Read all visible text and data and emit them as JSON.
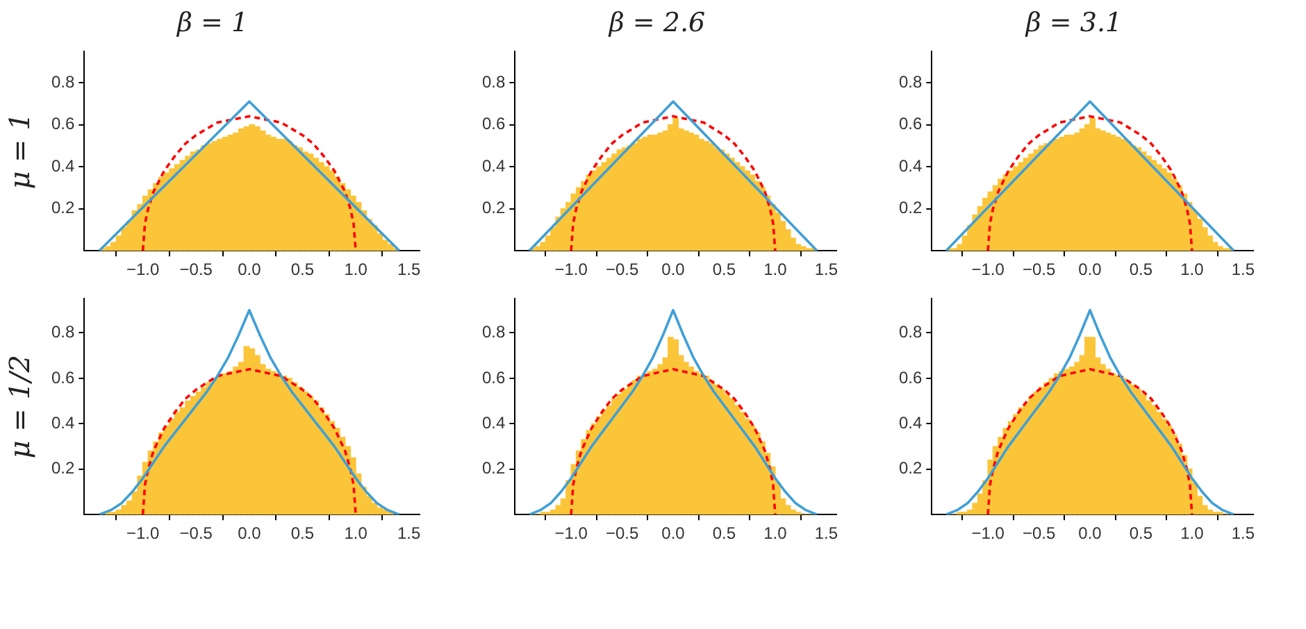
{
  "chart_data": [
    {
      "type": "histogram",
      "title": "β = 1",
      "ylabel": "μ = 1",
      "color": "#fbc53a",
      "bins": [
        -1.4,
        -1.35,
        -1.3,
        -1.25,
        -1.2,
        -1.15,
        -1.1,
        -1.05,
        -1.0,
        -0.95,
        -0.9,
        -0.85,
        -0.8,
        -0.75,
        -0.7,
        -0.65,
        -0.6,
        -0.55,
        -0.5,
        -0.45,
        -0.4,
        -0.35,
        -0.3,
        -0.25,
        -0.2,
        -0.15,
        -0.1,
        -0.05,
        0,
        0.05,
        0.1,
        0.15,
        0.2,
        0.25,
        0.3,
        0.35,
        0.4,
        0.45,
        0.5,
        0.55,
        0.6,
        0.65,
        0.7,
        0.75,
        0.8,
        0.85,
        0.9,
        0.95,
        1.0,
        1.05,
        1.1,
        1.15,
        1.2,
        1.25,
        1.3,
        1.35,
        1.4
      ],
      "values": [
        0.01,
        0.02,
        0.04,
        0.07,
        0.11,
        0.14,
        0.19,
        0.22,
        0.26,
        0.29,
        0.32,
        0.35,
        0.37,
        0.39,
        0.41,
        0.43,
        0.45,
        0.47,
        0.48,
        0.5,
        0.51,
        0.52,
        0.53,
        0.54,
        0.55,
        0.56,
        0.58,
        0.59,
        0.6,
        0.59,
        0.57,
        0.55,
        0.54,
        0.53,
        0.53,
        0.52,
        0.5,
        0.49,
        0.47,
        0.46,
        0.44,
        0.42,
        0.4,
        0.38,
        0.35,
        0.32,
        0.29,
        0.26,
        0.23,
        0.19,
        0.15,
        0.12,
        0.08,
        0.05,
        0.03,
        0.01
      ],
      "series": [
        {
          "type": "line",
          "color": "#3f9fd6",
          "x": [
            -1.41,
            0,
            1.41
          ],
          "values": [
            0,
            0.71,
            0
          ]
        },
        {
          "type": "line",
          "color": "#ff0000",
          "line_style": "dashed",
          "x": [
            -1,
            -0.98,
            -0.95,
            -0.9,
            -0.8,
            -0.7,
            -0.6,
            -0.5,
            -0.4,
            -0.3,
            -0.2,
            -0.1,
            0,
            0.1,
            0.2,
            0.3,
            0.4,
            0.5,
            0.6,
            0.7,
            0.8,
            0.9,
            0.95,
            0.98,
            1
          ],
          "values": [
            0,
            0.13,
            0.2,
            0.28,
            0.38,
            0.45,
            0.51,
            0.55,
            0.58,
            0.61,
            0.62,
            0.63,
            0.64,
            0.63,
            0.62,
            0.61,
            0.58,
            0.55,
            0.51,
            0.45,
            0.38,
            0.28,
            0.2,
            0.13,
            0
          ]
        }
      ],
      "xlim": [
        -1.55,
        1.6
      ],
      "xticks": [
        {
          "value": -1,
          "label": "−1.0"
        },
        {
          "value": -0.5,
          "label": "−0.5"
        },
        {
          "value": 0,
          "label": "0.0"
        },
        {
          "value": 0.5,
          "label": "0.5"
        },
        {
          "value": 1,
          "label": "1.0"
        },
        {
          "value": 1.5,
          "label": "1.5"
        }
      ],
      "ylim": [
        0,
        0.95
      ],
      "yticks": [
        0.2,
        0.4,
        0.6,
        0.8
      ],
      "grid": false,
      "legend": false
    },
    {
      "type": "histogram",
      "title": "β = 2.6",
      "color": "#fbc53a",
      "bins": [
        -1.4,
        -1.35,
        -1.3,
        -1.25,
        -1.2,
        -1.15,
        -1.1,
        -1.05,
        -1.0,
        -0.95,
        -0.9,
        -0.85,
        -0.8,
        -0.75,
        -0.7,
        -0.65,
        -0.6,
        -0.55,
        -0.5,
        -0.45,
        -0.4,
        -0.35,
        -0.3,
        -0.25,
        -0.2,
        -0.15,
        -0.1,
        -0.05,
        0,
        0.05,
        0.1,
        0.15,
        0.2,
        0.25,
        0.3,
        0.35,
        0.4,
        0.45,
        0.5,
        0.55,
        0.6,
        0.65,
        0.7,
        0.75,
        0.8,
        0.85,
        0.9,
        0.95,
        1.0,
        1.05,
        1.1,
        1.15,
        1.2,
        1.25,
        1.3,
        1.35,
        1.4
      ],
      "values": [
        0.01,
        0.02,
        0.04,
        0.07,
        0.11,
        0.16,
        0.2,
        0.23,
        0.27,
        0.3,
        0.33,
        0.36,
        0.38,
        0.4,
        0.42,
        0.44,
        0.46,
        0.48,
        0.49,
        0.5,
        0.51,
        0.53,
        0.54,
        0.55,
        0.55,
        0.56,
        0.57,
        0.6,
        0.63,
        0.58,
        0.57,
        0.56,
        0.55,
        0.53,
        0.52,
        0.51,
        0.49,
        0.48,
        0.46,
        0.44,
        0.42,
        0.4,
        0.38,
        0.36,
        0.33,
        0.3,
        0.26,
        0.22,
        0.18,
        0.14,
        0.1,
        0.06,
        0.03,
        0.02,
        0.01,
        0.01
      ],
      "series": [
        {
          "type": "line",
          "color": "#3f9fd6",
          "x": [
            -1.41,
            0,
            1.41
          ],
          "values": [
            0,
            0.71,
            0
          ]
        },
        {
          "type": "line",
          "color": "#ff0000",
          "line_style": "dashed",
          "x": [
            -1,
            -0.98,
            -0.95,
            -0.9,
            -0.8,
            -0.7,
            -0.6,
            -0.5,
            -0.4,
            -0.3,
            -0.2,
            -0.1,
            0,
            0.1,
            0.2,
            0.3,
            0.4,
            0.5,
            0.6,
            0.7,
            0.8,
            0.9,
            0.95,
            0.98,
            1
          ],
          "values": [
            0,
            0.13,
            0.2,
            0.28,
            0.38,
            0.45,
            0.51,
            0.55,
            0.58,
            0.61,
            0.62,
            0.63,
            0.64,
            0.63,
            0.62,
            0.61,
            0.58,
            0.55,
            0.51,
            0.45,
            0.38,
            0.28,
            0.2,
            0.13,
            0
          ]
        }
      ],
      "xlim": [
        -1.55,
        1.6
      ],
      "xticks": [
        {
          "value": -1,
          "label": "−1.0"
        },
        {
          "value": -0.5,
          "label": "−0.5"
        },
        {
          "value": 0,
          "label": "0.0"
        },
        {
          "value": 0.5,
          "label": "0.5"
        },
        {
          "value": 1,
          "label": "1.0"
        },
        {
          "value": 1.5,
          "label": "1.5"
        }
      ],
      "ylim": [
        0,
        0.95
      ],
      "yticks": [
        0.2,
        0.4,
        0.6,
        0.8
      ],
      "grid": false,
      "legend": false
    },
    {
      "type": "histogram",
      "title": "β = 3.1",
      "color": "#fbc53a",
      "bins": [
        -1.4,
        -1.35,
        -1.3,
        -1.25,
        -1.2,
        -1.15,
        -1.1,
        -1.05,
        -1.0,
        -0.95,
        -0.9,
        -0.85,
        -0.8,
        -0.75,
        -0.7,
        -0.65,
        -0.6,
        -0.55,
        -0.5,
        -0.45,
        -0.4,
        -0.35,
        -0.3,
        -0.25,
        -0.2,
        -0.15,
        -0.1,
        -0.05,
        0,
        0.05,
        0.1,
        0.15,
        0.2,
        0.25,
        0.3,
        0.35,
        0.4,
        0.45,
        0.5,
        0.55,
        0.6,
        0.65,
        0.7,
        0.75,
        0.8,
        0.85,
        0.9,
        0.95,
        1.0,
        1.05,
        1.1,
        1.15,
        1.2,
        1.25,
        1.3,
        1.35,
        1.4
      ],
      "values": [
        0.01,
        0.01,
        0.03,
        0.07,
        0.12,
        0.17,
        0.21,
        0.25,
        0.28,
        0.31,
        0.34,
        0.36,
        0.38,
        0.4,
        0.42,
        0.44,
        0.46,
        0.48,
        0.5,
        0.51,
        0.52,
        0.53,
        0.54,
        0.55,
        0.55,
        0.56,
        0.58,
        0.6,
        0.63,
        0.58,
        0.57,
        0.56,
        0.55,
        0.54,
        0.53,
        0.52,
        0.5,
        0.49,
        0.47,
        0.45,
        0.43,
        0.41,
        0.39,
        0.37,
        0.34,
        0.31,
        0.27,
        0.23,
        0.19,
        0.15,
        0.11,
        0.07,
        0.04,
        0.02,
        0.01,
        0.01
      ],
      "series": [
        {
          "type": "line",
          "color": "#3f9fd6",
          "x": [
            -1.41,
            0,
            1.41
          ],
          "values": [
            0,
            0.71,
            0
          ]
        },
        {
          "type": "line",
          "color": "#ff0000",
          "line_style": "dashed",
          "x": [
            -1,
            -0.98,
            -0.95,
            -0.9,
            -0.8,
            -0.7,
            -0.6,
            -0.5,
            -0.4,
            -0.3,
            -0.2,
            -0.1,
            0,
            0.1,
            0.2,
            0.3,
            0.4,
            0.5,
            0.6,
            0.7,
            0.8,
            0.9,
            0.95,
            0.98,
            1
          ],
          "values": [
            0,
            0.13,
            0.2,
            0.28,
            0.38,
            0.45,
            0.51,
            0.55,
            0.58,
            0.61,
            0.62,
            0.63,
            0.64,
            0.63,
            0.62,
            0.61,
            0.58,
            0.55,
            0.51,
            0.45,
            0.38,
            0.28,
            0.2,
            0.13,
            0
          ]
        }
      ],
      "xlim": [
        -1.55,
        1.6
      ],
      "xticks": [
        {
          "value": -1,
          "label": "−1.0"
        },
        {
          "value": -0.5,
          "label": "−0.5"
        },
        {
          "value": 0,
          "label": "0.0"
        },
        {
          "value": 0.5,
          "label": "0.5"
        },
        {
          "value": 1,
          "label": "1.0"
        },
        {
          "value": 1.5,
          "label": "1.5"
        }
      ],
      "ylim": [
        0,
        0.95
      ],
      "yticks": [
        0.2,
        0.4,
        0.6,
        0.8
      ],
      "grid": false,
      "legend": false
    },
    {
      "type": "histogram",
      "ylabel": "μ = 1/2",
      "color": "#fbc53a",
      "bins": [
        -1.4,
        -1.35,
        -1.3,
        -1.25,
        -1.2,
        -1.15,
        -1.1,
        -1.05,
        -1.0,
        -0.95,
        -0.9,
        -0.85,
        -0.8,
        -0.75,
        -0.7,
        -0.65,
        -0.6,
        -0.55,
        -0.5,
        -0.45,
        -0.4,
        -0.35,
        -0.3,
        -0.25,
        -0.2,
        -0.15,
        -0.1,
        -0.05,
        0,
        0.05,
        0.1,
        0.15,
        0.2,
        0.25,
        0.3,
        0.35,
        0.4,
        0.45,
        0.5,
        0.55,
        0.6,
        0.65,
        0.7,
        0.75,
        0.8,
        0.85,
        0.9,
        0.95,
        1.0,
        1.05,
        1.1,
        1.15,
        1.2,
        1.25,
        1.3,
        1.35,
        1.4
      ],
      "values": [
        0,
        0.01,
        0.01,
        0.02,
        0.04,
        0.06,
        0.1,
        0.17,
        0.23,
        0.28,
        0.32,
        0.36,
        0.39,
        0.42,
        0.45,
        0.47,
        0.5,
        0.52,
        0.54,
        0.56,
        0.58,
        0.6,
        0.61,
        0.62,
        0.63,
        0.65,
        0.67,
        0.74,
        0.73,
        0.7,
        0.66,
        0.64,
        0.63,
        0.62,
        0.61,
        0.6,
        0.58,
        0.56,
        0.54,
        0.52,
        0.5,
        0.47,
        0.44,
        0.41,
        0.38,
        0.34,
        0.3,
        0.25,
        0.18,
        0.12,
        0.08,
        0.05,
        0.03,
        0.02,
        0.01,
        0
      ],
      "series": [
        {
          "type": "line",
          "color": "#3f9fd6",
          "x": [
            -1.41,
            -1.3,
            -1.2,
            -1.1,
            -1,
            -0.9,
            -0.8,
            -0.7,
            -0.6,
            -0.5,
            -0.4,
            -0.3,
            -0.2,
            -0.1,
            0,
            0.1,
            0.2,
            0.3,
            0.4,
            0.5,
            0.6,
            0.7,
            0.8,
            0.9,
            1,
            1.1,
            1.2,
            1.3,
            1.41
          ],
          "values": [
            0,
            0.02,
            0.05,
            0.1,
            0.16,
            0.23,
            0.3,
            0.36,
            0.42,
            0.48,
            0.54,
            0.61,
            0.69,
            0.79,
            0.9,
            0.79,
            0.69,
            0.61,
            0.54,
            0.48,
            0.42,
            0.36,
            0.3,
            0.23,
            0.16,
            0.1,
            0.05,
            0.02,
            0
          ]
        },
        {
          "type": "line",
          "color": "#ff0000",
          "line_style": "dashed",
          "x": [
            -1,
            -0.98,
            -0.95,
            -0.9,
            -0.8,
            -0.7,
            -0.6,
            -0.5,
            -0.4,
            -0.3,
            -0.2,
            -0.1,
            0,
            0.1,
            0.2,
            0.3,
            0.4,
            0.5,
            0.6,
            0.7,
            0.8,
            0.9,
            0.95,
            0.98,
            1
          ],
          "values": [
            0,
            0.13,
            0.2,
            0.28,
            0.38,
            0.45,
            0.51,
            0.55,
            0.58,
            0.61,
            0.62,
            0.63,
            0.64,
            0.63,
            0.62,
            0.61,
            0.58,
            0.55,
            0.51,
            0.45,
            0.38,
            0.28,
            0.2,
            0.13,
            0
          ]
        }
      ],
      "xlim": [
        -1.55,
        1.6
      ],
      "xticks": [
        {
          "value": -1,
          "label": "−1.0"
        },
        {
          "value": -0.5,
          "label": "−0.5"
        },
        {
          "value": 0,
          "label": "0.0"
        },
        {
          "value": 0.5,
          "label": "0.5"
        },
        {
          "value": 1,
          "label": "1.0"
        },
        {
          "value": 1.5,
          "label": "1.5"
        }
      ],
      "ylim": [
        0,
        0.95
      ],
      "yticks": [
        0.2,
        0.4,
        0.6,
        0.8
      ],
      "grid": false,
      "legend": false
    },
    {
      "type": "histogram",
      "color": "#fbc53a",
      "bins": [
        -1.4,
        -1.35,
        -1.3,
        -1.25,
        -1.2,
        -1.15,
        -1.1,
        -1.05,
        -1.0,
        -0.95,
        -0.9,
        -0.85,
        -0.8,
        -0.75,
        -0.7,
        -0.65,
        -0.6,
        -0.55,
        -0.5,
        -0.45,
        -0.4,
        -0.35,
        -0.3,
        -0.25,
        -0.2,
        -0.15,
        -0.1,
        -0.05,
        0,
        0.05,
        0.1,
        0.15,
        0.2,
        0.25,
        0.3,
        0.35,
        0.4,
        0.45,
        0.5,
        0.55,
        0.6,
        0.65,
        0.7,
        0.75,
        0.8,
        0.85,
        0.9,
        0.95,
        1.0,
        1.05,
        1.1,
        1.15,
        1.2,
        1.25,
        1.3,
        1.35,
        1.4
      ],
      "values": [
        0,
        0,
        0.01,
        0.01,
        0.02,
        0.04,
        0.07,
        0.15,
        0.22,
        0.28,
        0.33,
        0.37,
        0.4,
        0.43,
        0.46,
        0.48,
        0.51,
        0.53,
        0.55,
        0.57,
        0.59,
        0.61,
        0.62,
        0.63,
        0.64,
        0.66,
        0.69,
        0.78,
        0.77,
        0.7,
        0.67,
        0.65,
        0.63,
        0.62,
        0.61,
        0.59,
        0.57,
        0.55,
        0.53,
        0.51,
        0.48,
        0.45,
        0.42,
        0.39,
        0.36,
        0.32,
        0.27,
        0.21,
        0.14,
        0.07,
        0.04,
        0.02,
        0.01,
        0,
        0,
        0
      ],
      "series": [
        {
          "type": "line",
          "color": "#3f9fd6",
          "x": [
            -1.41,
            -1.3,
            -1.2,
            -1.1,
            -1,
            -0.9,
            -0.8,
            -0.7,
            -0.6,
            -0.5,
            -0.4,
            -0.3,
            -0.2,
            -0.1,
            0,
            0.1,
            0.2,
            0.3,
            0.4,
            0.5,
            0.6,
            0.7,
            0.8,
            0.9,
            1,
            1.1,
            1.2,
            1.3,
            1.41
          ],
          "values": [
            0,
            0.02,
            0.05,
            0.1,
            0.16,
            0.23,
            0.3,
            0.36,
            0.42,
            0.48,
            0.54,
            0.61,
            0.69,
            0.79,
            0.9,
            0.79,
            0.69,
            0.61,
            0.54,
            0.48,
            0.42,
            0.36,
            0.3,
            0.23,
            0.16,
            0.1,
            0.05,
            0.02,
            0
          ]
        },
        {
          "type": "line",
          "color": "#ff0000",
          "line_style": "dashed",
          "x": [
            -1,
            -0.98,
            -0.95,
            -0.9,
            -0.8,
            -0.7,
            -0.6,
            -0.5,
            -0.4,
            -0.3,
            -0.2,
            -0.1,
            0,
            0.1,
            0.2,
            0.3,
            0.4,
            0.5,
            0.6,
            0.7,
            0.8,
            0.9,
            0.95,
            0.98,
            1
          ],
          "values": [
            0,
            0.13,
            0.2,
            0.28,
            0.38,
            0.45,
            0.51,
            0.55,
            0.58,
            0.61,
            0.62,
            0.63,
            0.64,
            0.63,
            0.62,
            0.61,
            0.58,
            0.55,
            0.51,
            0.45,
            0.38,
            0.28,
            0.2,
            0.13,
            0
          ]
        }
      ],
      "xlim": [
        -1.55,
        1.6
      ],
      "xticks": [
        {
          "value": -1,
          "label": "−1.0"
        },
        {
          "value": -0.5,
          "label": "−0.5"
        },
        {
          "value": 0,
          "label": "0.0"
        },
        {
          "value": 0.5,
          "label": "0.5"
        },
        {
          "value": 1,
          "label": "1.0"
        },
        {
          "value": 1.5,
          "label": "1.5"
        }
      ],
      "ylim": [
        0,
        0.95
      ],
      "yticks": [
        0.2,
        0.4,
        0.6,
        0.8
      ],
      "grid": false,
      "legend": false
    },
    {
      "type": "histogram",
      "color": "#fbc53a",
      "bins": [
        -1.4,
        -1.35,
        -1.3,
        -1.25,
        -1.2,
        -1.15,
        -1.1,
        -1.05,
        -1.0,
        -0.95,
        -0.9,
        -0.85,
        -0.8,
        -0.75,
        -0.7,
        -0.65,
        -0.6,
        -0.55,
        -0.5,
        -0.45,
        -0.4,
        -0.35,
        -0.3,
        -0.25,
        -0.2,
        -0.15,
        -0.1,
        -0.05,
        0,
        0.05,
        0.1,
        0.15,
        0.2,
        0.25,
        0.3,
        0.35,
        0.4,
        0.45,
        0.5,
        0.55,
        0.6,
        0.65,
        0.7,
        0.75,
        0.8,
        0.85,
        0.9,
        0.95,
        1.0,
        1.05,
        1.1,
        1.15,
        1.2,
        1.25,
        1.3,
        1.35,
        1.4
      ],
      "values": [
        0,
        0,
        0.01,
        0.01,
        0.02,
        0.05,
        0.09,
        0.15,
        0.24,
        0.3,
        0.34,
        0.38,
        0.41,
        0.44,
        0.47,
        0.49,
        0.52,
        0.54,
        0.56,
        0.58,
        0.6,
        0.62,
        0.63,
        0.64,
        0.65,
        0.67,
        0.7,
        0.78,
        0.78,
        0.69,
        0.66,
        0.64,
        0.62,
        0.61,
        0.6,
        0.58,
        0.57,
        0.55,
        0.53,
        0.5,
        0.48,
        0.45,
        0.42,
        0.39,
        0.35,
        0.31,
        0.26,
        0.2,
        0.14,
        0.08,
        0.04,
        0.02,
        0.01,
        0.01,
        0,
        0
      ],
      "series": [
        {
          "type": "line",
          "color": "#3f9fd6",
          "x": [
            -1.41,
            -1.3,
            -1.2,
            -1.1,
            -1,
            -0.9,
            -0.8,
            -0.7,
            -0.6,
            -0.5,
            -0.4,
            -0.3,
            -0.2,
            -0.1,
            0,
            0.1,
            0.2,
            0.3,
            0.4,
            0.5,
            0.6,
            0.7,
            0.8,
            0.9,
            1,
            1.1,
            1.2,
            1.3,
            1.41
          ],
          "values": [
            0,
            0.02,
            0.05,
            0.1,
            0.16,
            0.23,
            0.3,
            0.36,
            0.42,
            0.48,
            0.54,
            0.61,
            0.69,
            0.79,
            0.9,
            0.79,
            0.69,
            0.61,
            0.54,
            0.48,
            0.42,
            0.36,
            0.3,
            0.23,
            0.16,
            0.1,
            0.05,
            0.02,
            0
          ]
        },
        {
          "type": "line",
          "color": "#ff0000",
          "line_style": "dashed",
          "x": [
            -1,
            -0.98,
            -0.95,
            -0.9,
            -0.8,
            -0.7,
            -0.6,
            -0.5,
            -0.4,
            -0.3,
            -0.2,
            -0.1,
            0,
            0.1,
            0.2,
            0.3,
            0.4,
            0.5,
            0.6,
            0.7,
            0.8,
            0.9,
            0.95,
            0.98,
            1
          ],
          "values": [
            0,
            0.13,
            0.2,
            0.28,
            0.38,
            0.45,
            0.51,
            0.55,
            0.58,
            0.61,
            0.62,
            0.63,
            0.64,
            0.63,
            0.62,
            0.61,
            0.58,
            0.55,
            0.51,
            0.45,
            0.38,
            0.28,
            0.2,
            0.13,
            0
          ]
        }
      ],
      "xlim": [
        -1.55,
        1.6
      ],
      "xticks": [
        {
          "value": -1,
          "label": "−1.0"
        },
        {
          "value": -0.5,
          "label": "−0.5"
        },
        {
          "value": 0,
          "label": "0.0"
        },
        {
          "value": 0.5,
          "label": "0.5"
        },
        {
          "value": 1,
          "label": "1.0"
        },
        {
          "value": 1.5,
          "label": "1.5"
        }
      ],
      "ylim": [
        0,
        0.95
      ],
      "yticks": [
        0.2,
        0.4,
        0.6,
        0.8
      ],
      "grid": false,
      "legend": false
    }
  ]
}
